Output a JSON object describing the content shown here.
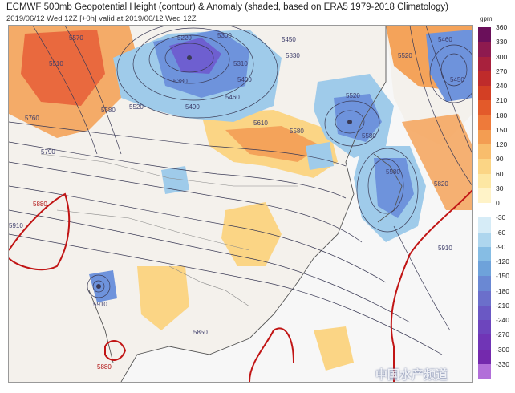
{
  "header": {
    "title": "ECMWF 500mb Geopotential Height (contour) & Anomaly (shaded, based on ERA5 1979-2018 Climatology)",
    "subtitle": "2019/06/12 Wed 12Z [+0h] valid at 2019/06/12 Wed 12Z"
  },
  "colorbar": {
    "unit": "gpm",
    "ticks": [
      "360",
      "330",
      "300",
      "270",
      "240",
      "210",
      "180",
      "150",
      "120",
      "90",
      "60",
      "30",
      "0",
      "-30",
      "-60",
      "-90",
      "-120",
      "-150",
      "-180",
      "-210",
      "-240",
      "-270",
      "-300",
      "-330"
    ],
    "colors": [
      "#6a0f5a",
      "#8e1a4f",
      "#a8213d",
      "#bf2b2b",
      "#d33f24",
      "#e35a2a",
      "#ee7a3a",
      "#f39d52",
      "#f8bd6c",
      "#fbd585",
      "#fde7a3",
      "#fff3c8",
      "#ffffff",
      "#d6ecf7",
      "#aed6ee",
      "#86bde4",
      "#6ea2da",
      "#6a88d3",
      "#6b6fcb",
      "#6a58c4",
      "#6d45bd",
      "#7035b6",
      "#7429ad"
    ],
    "low_extend_color": "#b26fd9"
  },
  "map": {
    "colors": {
      "warm_strong": "#e8623a",
      "warm_mid": "#f4a35a",
      "warm_light": "#fbd585",
      "cool_light": "#9fcbea",
      "cool_mid": "#6e93dc",
      "cool_strong": "#6e5fd0",
      "land": "#f4f1ec",
      "sea": "#f7f7f7",
      "coast": "#555555",
      "border": "#888888",
      "contour": "#3a3a55",
      "contour_5880": "#c11515"
    },
    "contour_labels": [
      "5220",
      "5300",
      "5310",
      "5380",
      "5570",
      "5400",
      "5450",
      "5460",
      "5490",
      "5520",
      "5610",
      "5580",
      "5760",
      "5790",
      "5910",
      "5510",
      "5580",
      "5520",
      "5460",
      "5520",
      "5450",
      "5580",
      "5880",
      "5850",
      "5820",
      "5910",
      "5830",
      "5880",
      "5580",
      "5910"
    ]
  },
  "watermark": "中国水产频道"
}
